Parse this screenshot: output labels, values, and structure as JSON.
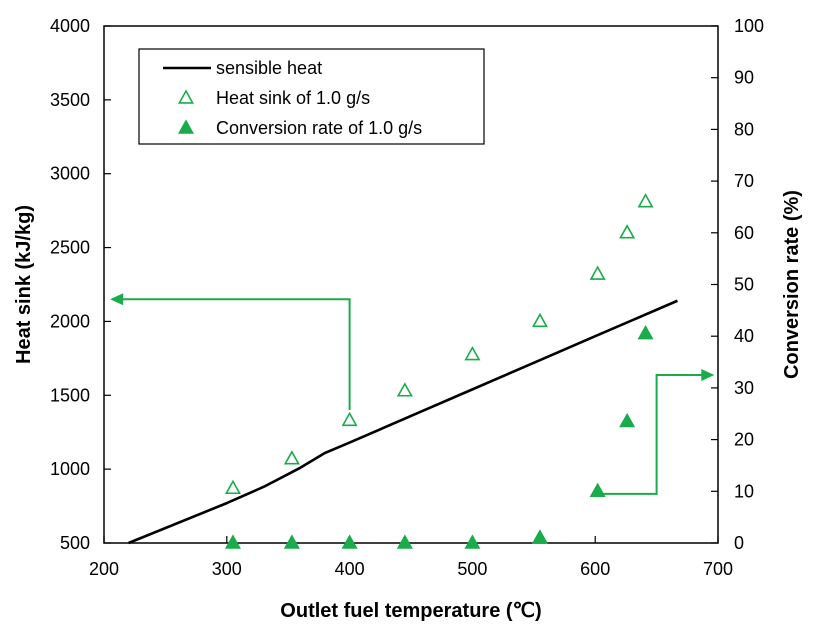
{
  "chart_data": {
    "type": "scatter",
    "xlabel": "Outlet fuel temperature (℃)",
    "ylabel": "Heat sink (kJ/kg)",
    "y2label": "Conversion rate (%)",
    "xlim": [
      200,
      700
    ],
    "ylim": [
      500,
      4000
    ],
    "y2lim": [
      0,
      100
    ],
    "x_ticks": [
      200,
      300,
      400,
      500,
      600,
      700
    ],
    "y_ticks": [
      500,
      1000,
      1500,
      2000,
      2500,
      3000,
      3500,
      4000
    ],
    "y2_ticks": [
      0,
      10,
      20,
      30,
      40,
      50,
      60,
      70,
      80,
      90,
      100
    ],
    "grid": false,
    "legend_position": "top-left",
    "colors": {
      "series": "#1aab4b",
      "line": "#000000"
    },
    "series": [
      {
        "name": "sensible heat",
        "kind": "line",
        "axis": "left",
        "x": [
          220,
          300,
          330,
          360,
          380,
          400,
          450,
          500,
          550,
          600,
          667
        ],
        "y": [
          500,
          770,
          880,
          1010,
          1110,
          1180,
          1360,
          1540,
          1720,
          1900,
          2140
        ]
      },
      {
        "name": "Heat sink of 1.0 g/s",
        "kind": "open-triangle",
        "axis": "left",
        "x": [
          305,
          353,
          400,
          445,
          500,
          555,
          602,
          626,
          641
        ],
        "y": [
          870,
          1070,
          1330,
          1530,
          1775,
          2000,
          2320,
          2600,
          2810
        ]
      },
      {
        "name": "Conversion rate of 1.0 g/s",
        "kind": "filled-triangle",
        "axis": "right",
        "x": [
          305,
          353,
          400,
          445,
          500,
          555,
          602,
          626,
          641
        ],
        "y": [
          0,
          0,
          0,
          0,
          0,
          1,
          10,
          23.5,
          40.5
        ]
      }
    ],
    "annotations": [
      {
        "type": "arrow",
        "points_data": [
          [
            400,
            1400
          ],
          [
            400,
            2150
          ],
          [
            205,
            2150
          ]
        ],
        "axis": "left",
        "meaning": "points to left axis"
      },
      {
        "type": "arrow",
        "points_data": [
          [
            602,
            9.5
          ],
          [
            650,
            9.5
          ],
          [
            650,
            32.5
          ],
          [
            697,
            32.5
          ]
        ],
        "axis": "right",
        "meaning": "points to right axis"
      }
    ]
  }
}
